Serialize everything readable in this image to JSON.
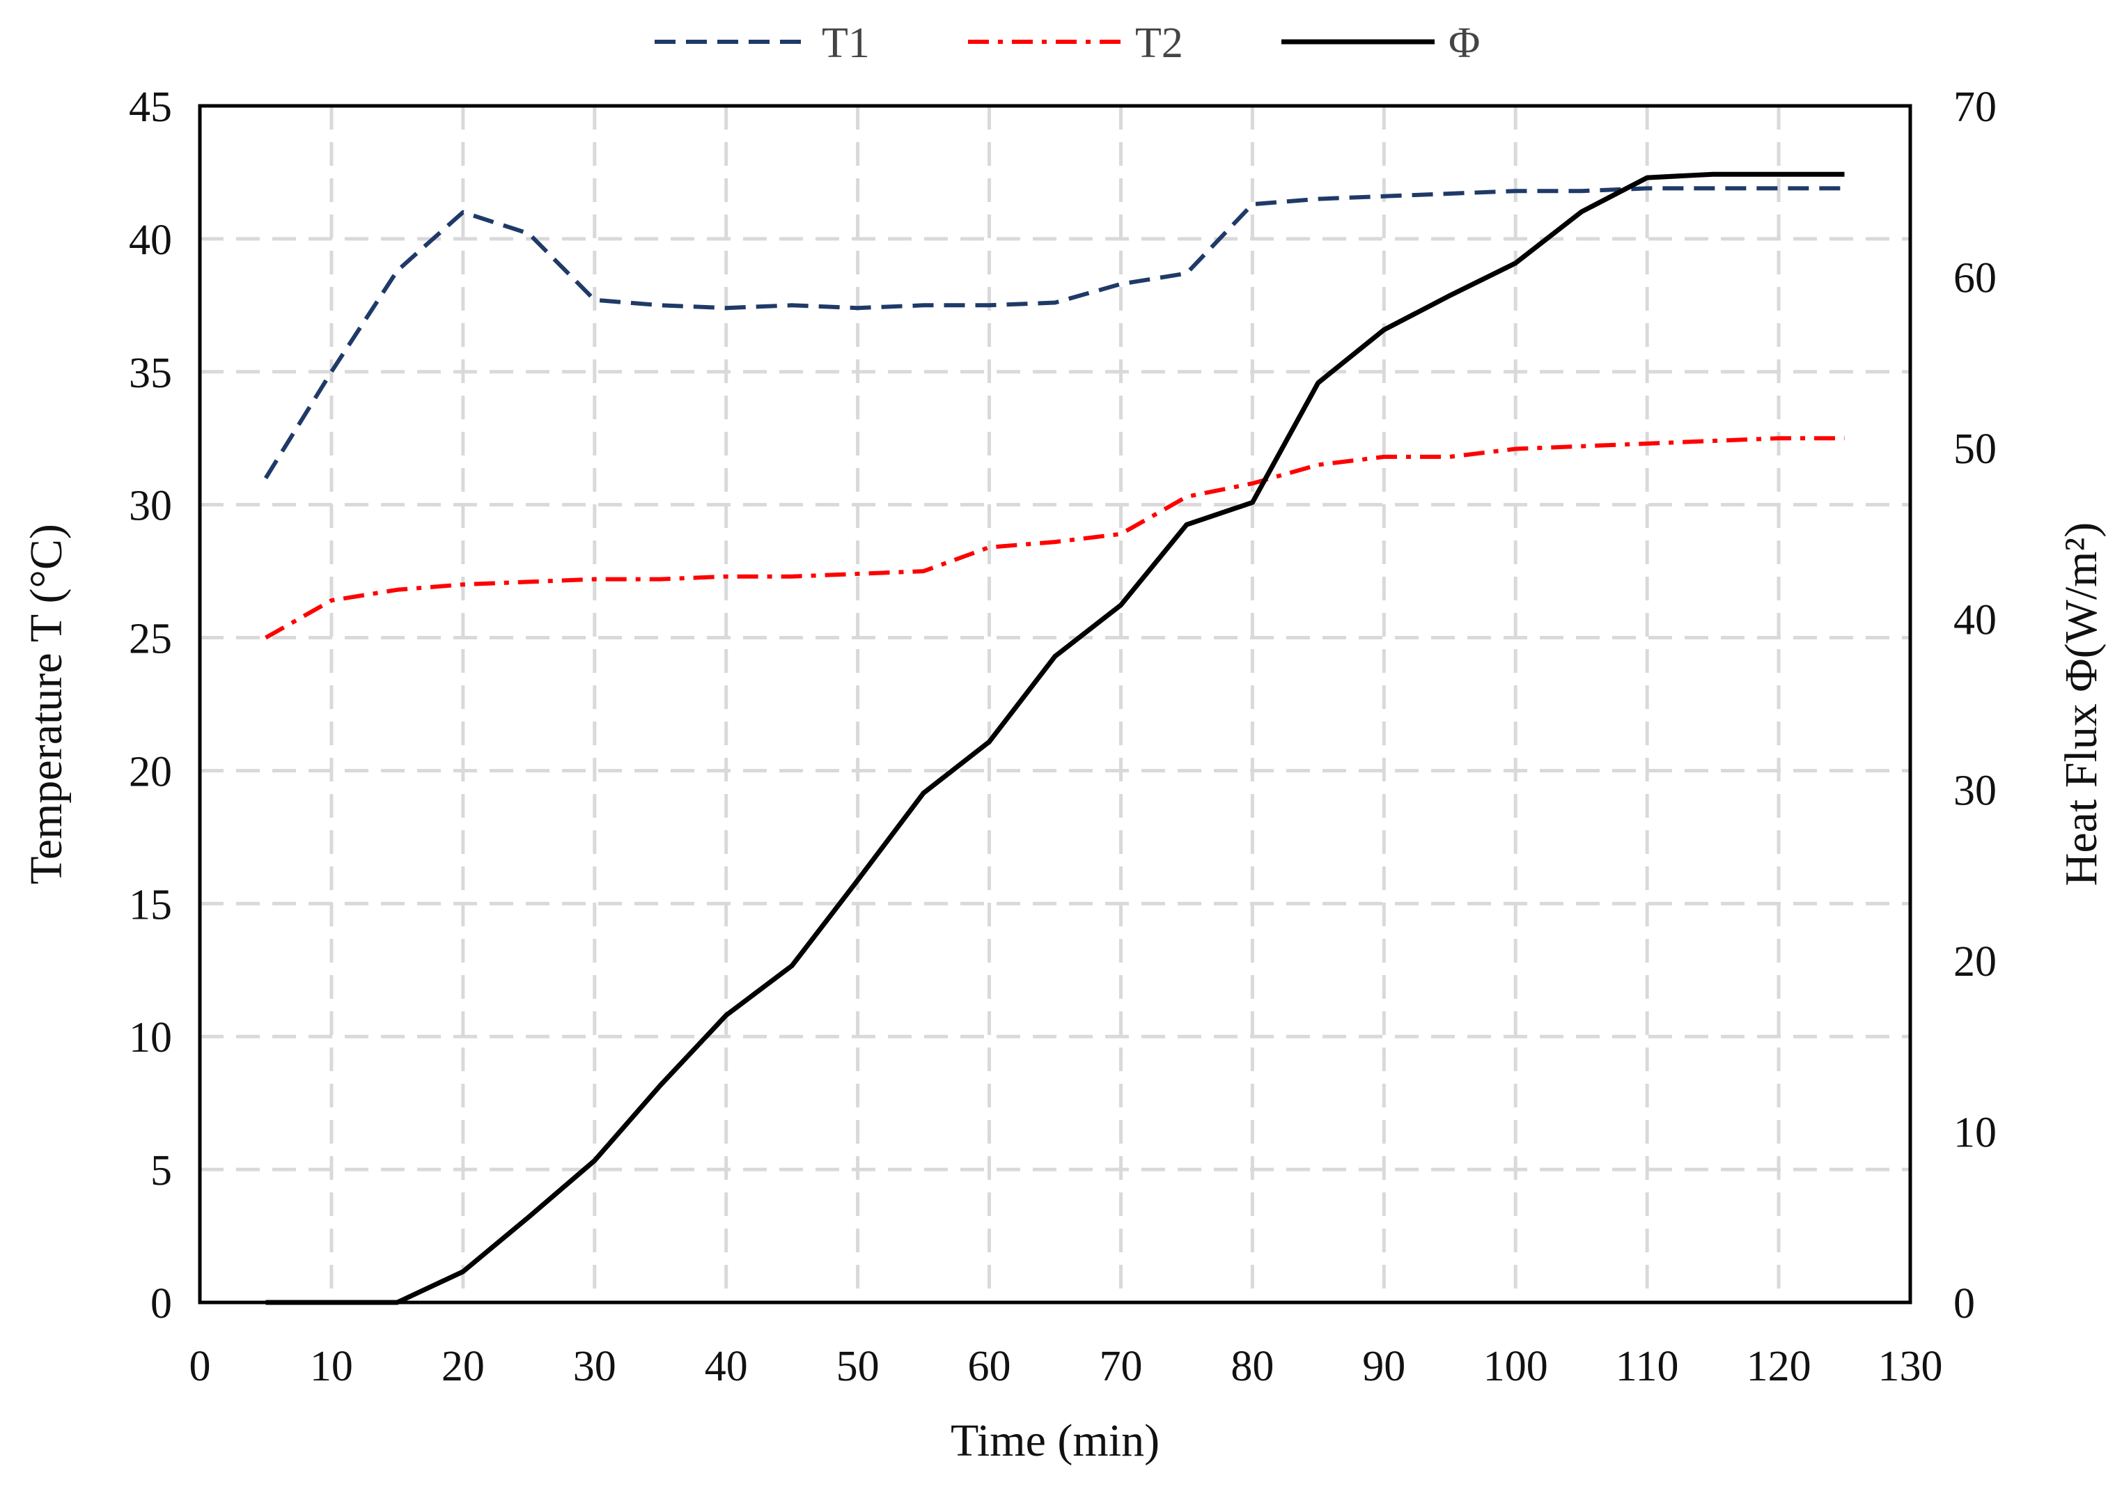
{
  "chart_data": {
    "type": "line",
    "xlabel": "Time (min)",
    "ylabel": "Temperature T (°C)",
    "ylabel_right": "Heat Flux Φ(W/m²)",
    "xlim": [
      0,
      130
    ],
    "ylim": [
      0,
      45
    ],
    "ylim_right": [
      0,
      70
    ],
    "x_ticks": [
      0,
      10,
      20,
      30,
      40,
      50,
      60,
      70,
      80,
      90,
      100,
      110,
      120,
      130
    ],
    "y_ticks": [
      0,
      5,
      10,
      15,
      20,
      25,
      30,
      35,
      40,
      45
    ],
    "y_ticks_right": [
      0,
      10,
      20,
      30,
      40,
      50,
      60,
      70
    ],
    "grid": true,
    "legend_position": "top",
    "series": [
      {
        "name": "T1",
        "axis": "left",
        "color": "#1f3a68",
        "style": "dashed",
        "x": [
          5,
          10,
          15,
          20,
          25,
          30,
          35,
          40,
          45,
          50,
          55,
          60,
          65,
          70,
          75,
          80,
          85,
          90,
          95,
          100,
          105,
          110,
          115,
          120,
          125
        ],
        "values": [
          31.0,
          35.0,
          38.8,
          41.0,
          40.2,
          37.7,
          37.5,
          37.4,
          37.5,
          37.4,
          37.5,
          37.5,
          37.6,
          38.3,
          38.7,
          41.3,
          41.5,
          41.6,
          41.7,
          41.8,
          41.8,
          41.9,
          41.9,
          41.9,
          41.9
        ]
      },
      {
        "name": "T2",
        "axis": "left",
        "color": "#ff0000",
        "style": "dashdot",
        "x": [
          5,
          10,
          15,
          20,
          25,
          30,
          35,
          40,
          45,
          50,
          55,
          60,
          65,
          70,
          75,
          80,
          85,
          90,
          95,
          100,
          105,
          110,
          115,
          120,
          125
        ],
        "values": [
          25.0,
          26.4,
          26.8,
          27.0,
          27.1,
          27.2,
          27.2,
          27.3,
          27.3,
          27.4,
          27.5,
          28.4,
          28.6,
          28.9,
          30.3,
          30.8,
          31.5,
          31.8,
          31.8,
          32.1,
          32.2,
          32.3,
          32.4,
          32.5,
          32.5
        ]
      },
      {
        "name": "Φ",
        "axis": "right",
        "color": "#000000",
        "style": "solid",
        "x": [
          5,
          10,
          15,
          20,
          25,
          30,
          35,
          40,
          45,
          50,
          55,
          60,
          65,
          70,
          75,
          80,
          85,
          90,
          95,
          100,
          105,
          110,
          115,
          120,
          125
        ],
        "values": [
          0,
          0,
          0,
          1.8,
          5.0,
          8.3,
          12.7,
          16.8,
          19.7,
          24.7,
          29.8,
          32.8,
          37.8,
          40.8,
          45.5,
          46.8,
          53.8,
          56.9,
          58.9,
          60.8,
          63.8,
          65.8,
          66.0,
          66.0,
          66.0
        ]
      }
    ]
  }
}
